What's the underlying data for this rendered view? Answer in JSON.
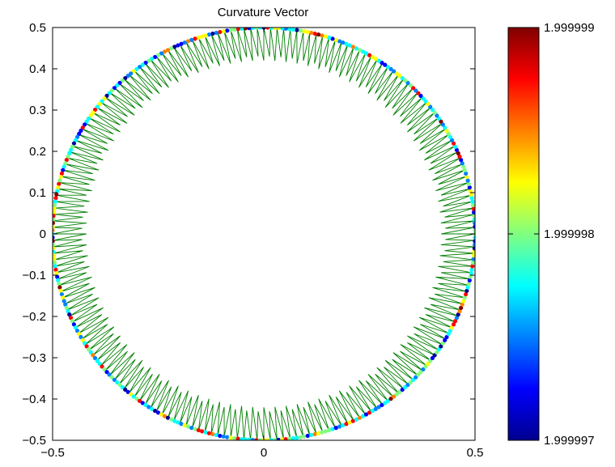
{
  "chart_data": {
    "type": "scatter",
    "title": "Curvature Vector",
    "xlabel": "",
    "ylabel": "",
    "xlim": [
      -0.5,
      0.5
    ],
    "ylim": [
      -0.5,
      0.5
    ],
    "xticks": [
      -0.5,
      0,
      0.5
    ],
    "xtick_labels": [
      "−0.5",
      "0",
      "0.5"
    ],
    "yticks": [
      0.5,
      0.4,
      0.3,
      0.2,
      0.1,
      0,
      -0.1,
      -0.2,
      -0.3,
      -0.4,
      -0.5
    ],
    "ytick_labels": [
      "0.5",
      "0.4",
      "0.3",
      "0.2",
      "0.1",
      "0",
      "−0.1",
      "−0.2",
      "−0.3",
      "−0.4",
      "−0.5"
    ],
    "grid": false,
    "circle": {
      "center": [
        0,
        0
      ],
      "radius": 0.5
    },
    "curvature_vectors": {
      "count": 200,
      "tip_radius_low": 0.42,
      "tip_radius_high": 0.43,
      "color": "#007f00"
    },
    "colorbar": {
      "min": 1.999997,
      "max": 1.999999,
      "tick_values": [
        1.999999,
        1.999998,
        1.999997
      ],
      "tick_labels": [
        "1.999999",
        "1.999998",
        "1.999997"
      ],
      "colormap": "jet"
    }
  }
}
